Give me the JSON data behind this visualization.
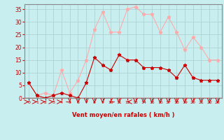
{
  "x": [
    0,
    1,
    2,
    3,
    4,
    5,
    6,
    7,
    8,
    9,
    10,
    11,
    12,
    13,
    14,
    15,
    16,
    17,
    18,
    19,
    20,
    21,
    22,
    23
  ],
  "vent_moyen": [
    6,
    1,
    0,
    1,
    2,
    1,
    0,
    6,
    16,
    13,
    11,
    17,
    15,
    15,
    12,
    12,
    12,
    11,
    8,
    13,
    8,
    7,
    7,
    7
  ],
  "rafales": [
    6,
    1,
    2,
    1,
    11,
    2,
    7,
    15,
    27,
    34,
    26,
    26,
    35,
    36,
    33,
    33,
    26,
    32,
    26,
    19,
    24,
    20,
    15,
    15
  ],
  "color_moyen": "#cc0000",
  "color_rafales": "#ffaaaa",
  "bg_color": "#c8eef0",
  "grid_color": "#aacccc",
  "xlabel": "Vent moyen/en rafales ( km/h )",
  "xlabel_color": "#cc0000",
  "tick_color": "#cc0000",
  "ylim": [
    0,
    37
  ],
  "yticks": [
    0,
    5,
    10,
    15,
    20,
    25,
    30,
    35
  ],
  "arrow_color": "#cc0000",
  "spine_color": "#888888"
}
